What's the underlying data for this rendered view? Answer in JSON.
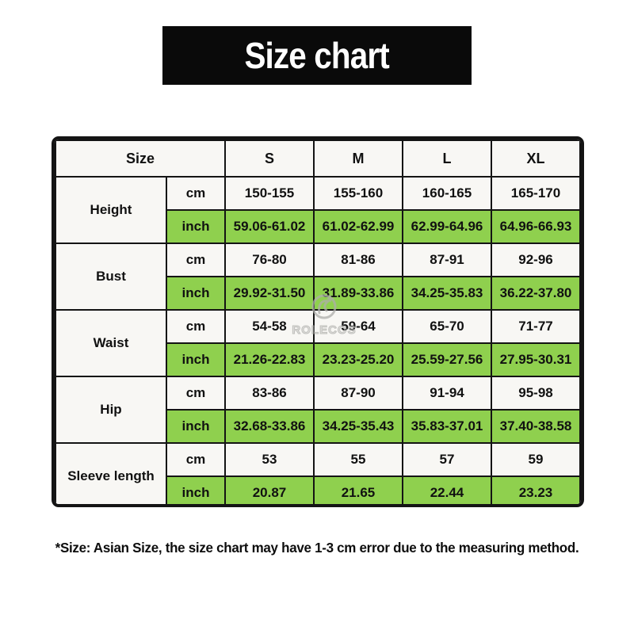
{
  "page": {
    "title": "Size chart",
    "footnote": "*Size: Asian Size, the size chart may have 1-3 cm error due to the measuring method."
  },
  "watermark": {
    "brand": "ROLECOS"
  },
  "colors": {
    "banner_bg": "#0a0a0a",
    "banner_text": "#ffffff",
    "highlight_green": "#8fd04e",
    "grid_line": "#141414",
    "cell_bg": "#f8f7f4",
    "watermark_gray": "#aeaeab"
  },
  "chart_data": {
    "type": "table",
    "header": {
      "label": "Size",
      "sizes": [
        "S",
        "M",
        "L",
        "XL"
      ]
    },
    "unit_labels": {
      "cm": "cm",
      "inch": "inch"
    },
    "rows": [
      {
        "measurement": "Height",
        "cm": [
          "150-155",
          "155-160",
          "160-165",
          "165-170"
        ],
        "inch": [
          "59.06-61.02",
          "61.02-62.99",
          "62.99-64.96",
          "64.96-66.93"
        ]
      },
      {
        "measurement": "Bust",
        "cm": [
          "76-80",
          "81-86",
          "87-91",
          "92-96"
        ],
        "inch": [
          "29.92-31.50",
          "31.89-33.86",
          "34.25-35.83",
          "36.22-37.80"
        ]
      },
      {
        "measurement": "Waist",
        "cm": [
          "54-58",
          "59-64",
          "65-70",
          "71-77"
        ],
        "inch": [
          "21.26-22.83",
          "23.23-25.20",
          "25.59-27.56",
          "27.95-30.31"
        ]
      },
      {
        "measurement": "Hip",
        "cm": [
          "83-86",
          "87-90",
          "91-94",
          "95-98"
        ],
        "inch": [
          "32.68-33.86",
          "34.25-35.43",
          "35.83-37.01",
          "37.40-38.58"
        ]
      },
      {
        "measurement": "Sleeve length",
        "cm": [
          "53",
          "55",
          "57",
          "59"
        ],
        "inch": [
          "20.87",
          "21.65",
          "22.44",
          "23.23"
        ]
      }
    ]
  }
}
